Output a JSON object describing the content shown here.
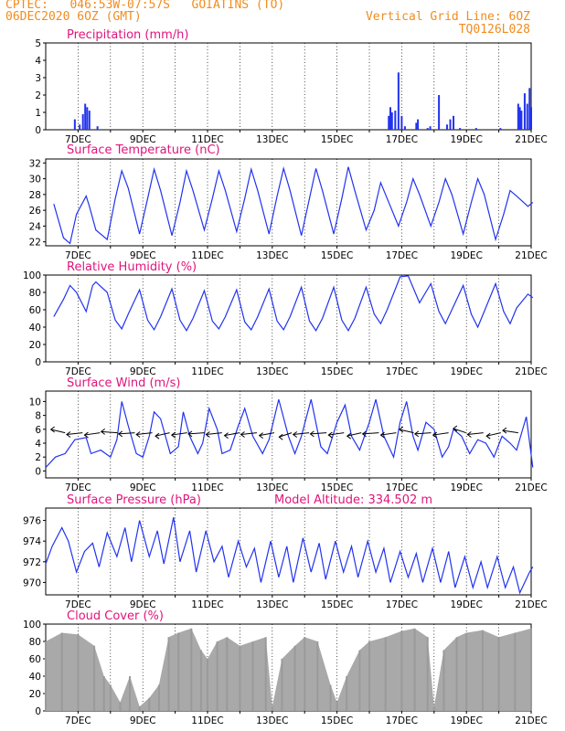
{
  "header": {
    "line1": "CPTEC:   046:53W-07:57S   GOIATINS (TO)",
    "line2": "06DEC2020 6OZ (GMT)",
    "grid_note": "Vertical Grid Line: 6OZ",
    "code": "TQ0126L028"
  },
  "chart_data": [
    {
      "id": "precip",
      "type": "bar",
      "title": "Precipitation (mm/h)",
      "ylim": [
        0,
        5
      ],
      "yticks": [
        0,
        1,
        2,
        3,
        4,
        5
      ],
      "xticks": [
        "7DEC",
        "9DEC",
        "11DEC",
        "13DEC",
        "15DEC",
        "17DEC",
        "19DEC",
        "21DEC"
      ],
      "series": [
        {
          "x": [
            6.9,
            7.05,
            7.15,
            7.22,
            7.28,
            7.35,
            7.6,
            16.6,
            16.65,
            16.7,
            16.8,
            16.9,
            17.0,
            17.1,
            17.45,
            17.5,
            17.8,
            17.88,
            18.15,
            18.4,
            18.5,
            18.6,
            18.8,
            19.3,
            20.05,
            20.6,
            20.65,
            20.7,
            20.8,
            20.88,
            20.95,
            21.0
          ],
          "y": [
            0.6,
            0.3,
            0.9,
            1.5,
            1.3,
            1.1,
            0.2,
            0.8,
            1.3,
            1.0,
            1.1,
            3.3,
            0.8,
            0.2,
            0.4,
            0.6,
            0.1,
            0.2,
            2.0,
            0.3,
            0.6,
            0.8,
            0.1,
            0.1,
            0.1,
            1.5,
            1.3,
            1.1,
            2.1,
            1.5,
            2.4,
            1.3
          ]
        }
      ]
    },
    {
      "id": "temp",
      "type": "line",
      "title": "Surface Temperature (nC)",
      "ylim": [
        21.5,
        32.5
      ],
      "yticks": [
        22,
        24,
        26,
        28,
        30,
        32
      ],
      "xticks": [
        "7DEC",
        "9DEC",
        "11DEC",
        "13DEC",
        "15DEC",
        "17DEC",
        "19DEC",
        "21DEC"
      ],
      "series": [
        {
          "x": [
            6.25,
            6.55,
            6.75,
            6.95,
            7.25,
            7.35,
            7.55,
            7.9,
            8.15,
            8.35,
            8.55,
            8.9,
            9.15,
            9.35,
            9.55,
            9.9,
            10.15,
            10.35,
            10.55,
            10.9,
            11.15,
            11.35,
            11.55,
            11.9,
            12.15,
            12.35,
            12.55,
            12.9,
            13.15,
            13.35,
            13.55,
            13.9,
            14.15,
            14.35,
            14.55,
            14.9,
            15.15,
            15.35,
            15.55,
            15.9,
            16.15,
            16.35,
            16.55,
            16.9,
            17.15,
            17.35,
            17.55,
            17.9,
            18.15,
            18.35,
            18.55,
            18.9,
            19.15,
            19.35,
            19.55,
            19.9,
            20.15,
            20.35,
            20.55,
            20.9,
            21.05
          ],
          "y": [
            26.8,
            22.5,
            21.8,
            25.5,
            27.8,
            26.5,
            23.5,
            22.3,
            27.5,
            31.0,
            28.8,
            23.0,
            27.5,
            31.2,
            28.5,
            22.8,
            27.0,
            31.0,
            28.5,
            23.5,
            27.5,
            31.0,
            28.5,
            23.3,
            27.5,
            31.2,
            28.5,
            23.0,
            27.8,
            31.3,
            28.5,
            22.8,
            27.5,
            31.3,
            28.5,
            23.0,
            27.5,
            31.5,
            28.5,
            23.5,
            26.0,
            29.5,
            27.5,
            24.0,
            27.0,
            30.0,
            28.0,
            24.0,
            27.0,
            30.0,
            28.0,
            23.0,
            27.0,
            30.0,
            28.0,
            22.3,
            25.5,
            28.5,
            27.8,
            26.5,
            27.0
          ]
        }
      ]
    },
    {
      "id": "rh",
      "type": "line",
      "title": "Relative Humidity (%)",
      "ylim": [
        0,
        100
      ],
      "yticks": [
        0,
        20,
        40,
        60,
        80,
        100
      ],
      "xticks": [
        "7DEC",
        "9DEC",
        "11DEC",
        "13DEC",
        "15DEC",
        "17DEC",
        "19DEC",
        "21DEC"
      ],
      "series": [
        {
          "x": [
            6.25,
            6.55,
            6.75,
            6.95,
            7.25,
            7.45,
            7.55,
            7.9,
            8.15,
            8.35,
            8.55,
            8.9,
            9.15,
            9.35,
            9.55,
            9.9,
            10.15,
            10.35,
            10.55,
            10.9,
            11.15,
            11.35,
            11.55,
            11.9,
            12.15,
            12.35,
            12.55,
            12.9,
            13.15,
            13.35,
            13.55,
            13.9,
            14.15,
            14.35,
            14.55,
            14.9,
            15.15,
            15.35,
            15.55,
            15.9,
            16.15,
            16.35,
            16.55,
            16.9,
            16.95,
            17.2,
            17.55,
            17.9,
            18.15,
            18.35,
            18.55,
            18.9,
            19.15,
            19.35,
            19.55,
            19.9,
            20.15,
            20.35,
            20.55,
            20.9,
            21.05
          ],
          "y": [
            52.0,
            72.0,
            88.0,
            80.0,
            58.0,
            88.0,
            92.0,
            80.0,
            48.0,
            38.0,
            55.0,
            83.0,
            48.0,
            37.0,
            52.0,
            84.0,
            48.0,
            36.0,
            50.0,
            82.0,
            47.0,
            38.0,
            52.0,
            83.0,
            46.0,
            37.0,
            52.0,
            84.0,
            47.0,
            37.0,
            52.0,
            86.0,
            47.0,
            36.0,
            50.0,
            86.0,
            48.0,
            36.0,
            50.0,
            86.0,
            55.0,
            44.0,
            60.0,
            93.0,
            98.0,
            99.0,
            68.0,
            90.0,
            58.0,
            44.0,
            60.0,
            88.0,
            55.0,
            40.0,
            58.0,
            90.0,
            58.0,
            44.0,
            62.0,
            78.0,
            74.0
          ]
        }
      ]
    },
    {
      "id": "wind",
      "type": "line",
      "title": "Surface Wind (m/s)",
      "ylim": [
        -1,
        11.5
      ],
      "yticks": [
        0,
        2,
        4,
        6,
        8,
        10
      ],
      "xticks": [
        "7DEC",
        "9DEC",
        "11DEC",
        "13DEC",
        "15DEC",
        "17DEC",
        "19DEC",
        "21DEC"
      ],
      "series": [
        {
          "x": [
            6.0,
            6.3,
            6.6,
            6.9,
            7.25,
            7.4,
            7.7,
            8.0,
            8.2,
            8.35,
            8.55,
            8.8,
            9.0,
            9.2,
            9.35,
            9.55,
            9.85,
            10.1,
            10.25,
            10.45,
            10.7,
            10.85,
            11.05,
            11.3,
            11.45,
            11.7,
            11.95,
            12.15,
            12.4,
            12.7,
            12.9,
            13.2,
            13.5,
            13.7,
            13.9,
            14.2,
            14.5,
            14.7,
            15.0,
            15.25,
            15.45,
            15.7,
            16.0,
            16.2,
            16.45,
            16.75,
            16.95,
            17.15,
            17.35,
            17.5,
            17.75,
            18.0,
            18.25,
            18.45,
            18.6,
            18.85,
            19.1,
            19.35,
            19.6,
            19.85,
            20.1,
            20.35,
            20.55,
            20.85,
            21.05
          ],
          "y": [
            0.5,
            2.0,
            2.5,
            4.5,
            4.8,
            2.5,
            3.0,
            2.0,
            4.5,
            10.0,
            6.5,
            2.5,
            2.0,
            5.0,
            8.5,
            7.5,
            2.5,
            3.5,
            8.5,
            5.0,
            2.5,
            4.0,
            9.0,
            6.0,
            2.5,
            3.0,
            6.5,
            9.0,
            5.0,
            2.5,
            4.5,
            10.3,
            5.0,
            2.5,
            5.0,
            10.3,
            3.5,
            2.5,
            7.0,
            9.5,
            5.0,
            3.0,
            7.0,
            10.3,
            5.0,
            2.0,
            7.0,
            10.0,
            5.0,
            3.0,
            7.0,
            6.0,
            2.0,
            3.5,
            6.0,
            5.0,
            2.5,
            4.5,
            4.0,
            2.0,
            5.0,
            4.0,
            3.0,
            7.8,
            0.5
          ]
        }
      ],
      "vectors_deg": [
        330,
        15,
        20,
        350,
        10,
        15,
        30,
        20,
        10,
        15,
        25,
        15,
        25,
        40,
        15,
        10,
        20,
        30,
        10,
        20,
        330,
        10,
        20,
        320,
        15,
        30,
        340
      ]
    },
    {
      "id": "press",
      "type": "line",
      "title": "Surface Pressure (hPa)",
      "annotation": "Model Altitude: 334.502 m",
      "ylim": [
        968.8,
        977.2
      ],
      "yticks": [
        970,
        972,
        974,
        976
      ],
      "xticks": [
        "7DEC",
        "9DEC",
        "11DEC",
        "13DEC",
        "15DEC",
        "17DEC",
        "19DEC",
        "21DEC"
      ],
      "series": [
        {
          "x": [
            6.0,
            6.2,
            6.5,
            6.7,
            6.95,
            7.2,
            7.45,
            7.65,
            7.9,
            8.2,
            8.45,
            8.65,
            8.9,
            9.2,
            9.45,
            9.65,
            9.95,
            10.15,
            10.45,
            10.65,
            10.95,
            11.2,
            11.45,
            11.65,
            11.95,
            12.2,
            12.45,
            12.65,
            12.95,
            13.2,
            13.45,
            13.65,
            13.95,
            14.2,
            14.45,
            14.65,
            14.95,
            15.2,
            15.45,
            15.65,
            15.95,
            16.2,
            16.45,
            16.65,
            16.95,
            17.2,
            17.45,
            17.65,
            17.95,
            18.2,
            18.45,
            18.65,
            18.95,
            19.2,
            19.45,
            19.65,
            19.95,
            20.2,
            20.45,
            20.65,
            20.95,
            21.05
          ],
          "y": [
            971.8,
            973.5,
            975.3,
            974.0,
            971.0,
            973.0,
            973.8,
            971.5,
            974.8,
            972.5,
            975.3,
            972.0,
            976.0,
            972.5,
            975.0,
            971.8,
            976.3,
            972.0,
            975.0,
            971.0,
            975.0,
            972.0,
            973.5,
            970.5,
            974.0,
            971.5,
            973.3,
            970.0,
            974.0,
            970.5,
            973.5,
            970.0,
            974.3,
            971.0,
            973.8,
            970.3,
            974.0,
            971.0,
            973.5,
            970.5,
            974.0,
            971.0,
            973.3,
            970.0,
            973.0,
            970.5,
            972.8,
            970.0,
            973.3,
            970.0,
            973.0,
            969.5,
            972.5,
            969.5,
            972.0,
            969.5,
            972.5,
            969.5,
            971.5,
            969.0,
            971.0,
            971.5
          ]
        }
      ]
    },
    {
      "id": "cloud",
      "type": "bar",
      "title": "Cloud Cover (%)",
      "ylim": [
        0,
        100
      ],
      "yticks": [
        0,
        20,
        40,
        60,
        80,
        100
      ],
      "xticks": [
        "7DEC",
        "9DEC",
        "11DEC",
        "13DEC",
        "15DEC",
        "17DEC",
        "19DEC",
        "21DEC"
      ],
      "series": [
        {
          "x": [
            6.0,
            6.5,
            7.0,
            7.5,
            7.8,
            8.0,
            8.3,
            8.6,
            8.9,
            9.2,
            9.5,
            9.8,
            10.1,
            10.5,
            10.8,
            11.0,
            11.3,
            11.6,
            12.0,
            12.4,
            12.8,
            13.0,
            13.3,
            13.7,
            14.0,
            14.4,
            14.8,
            15.0,
            15.3,
            15.7,
            16.0,
            16.5,
            17.0,
            17.4,
            17.8,
            18.0,
            18.3,
            18.7,
            19.0,
            19.5,
            20.0,
            20.5,
            21.0
          ],
          "y": [
            80,
            90,
            88,
            75,
            40,
            30,
            10,
            40,
            5,
            15,
            30,
            85,
            90,
            95,
            70,
            60,
            80,
            85,
            75,
            80,
            85,
            5,
            60,
            75,
            85,
            80,
            30,
            10,
            40,
            70,
            80,
            85,
            92,
            95,
            85,
            5,
            70,
            85,
            90,
            93,
            85,
            90,
            95
          ]
        }
      ]
    }
  ]
}
